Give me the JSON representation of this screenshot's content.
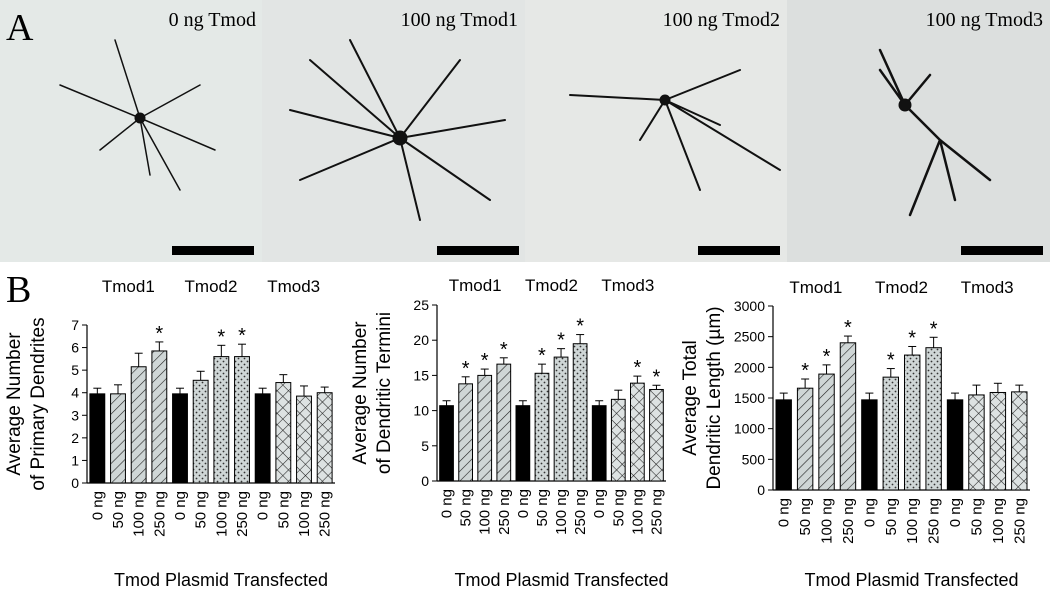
{
  "figure": {
    "label_a": "A",
    "label_b": "B",
    "images": [
      "0 ng Tmod",
      "100 ng Tmod1",
      "100 ng Tmod2",
      "100 ng Tmod3"
    ]
  },
  "chart_data": [
    {
      "type": "bar",
      "y_label": [
        "Average Number",
        "of Primary Dendrites"
      ],
      "x_label": "Tmod Plasmid Transfected",
      "groups": [
        "Tmod1",
        "Tmod2",
        "Tmod3"
      ],
      "categories": [
        "0 ng",
        "50 ng",
        "100 ng",
        "250 ng",
        "0 ng",
        "50 ng",
        "100 ng",
        "250 ng",
        "0 ng",
        "50 ng",
        "100 ng",
        "250 ng"
      ],
      "values": [
        3.95,
        3.95,
        5.15,
        5.85,
        3.95,
        4.55,
        5.6,
        5.6,
        3.95,
        4.45,
        3.85,
        4.0
      ],
      "errors": [
        0.25,
        0.4,
        0.6,
        0.4,
        0.25,
        0.4,
        0.5,
        0.55,
        0.25,
        0.35,
        0.45,
        0.25
      ],
      "markers": [
        null,
        null,
        null,
        "*",
        null,
        null,
        "*",
        "*",
        null,
        null,
        null,
        null
      ],
      "ylim": [
        0,
        7
      ],
      "yticks": [
        0,
        1,
        2,
        3,
        4,
        5,
        6,
        7
      ]
    },
    {
      "type": "bar",
      "y_label": [
        "Average Number",
        "of Dendritic Termini"
      ],
      "x_label": "Tmod Plasmid Transfected",
      "groups": [
        "Tmod1",
        "Tmod2",
        "Tmod3"
      ],
      "categories": [
        "0 ng",
        "50 ng",
        "100 ng",
        "250 ng",
        "0 ng",
        "50 ng",
        "100 ng",
        "250 ng",
        "0 ng",
        "50 ng",
        "100 ng",
        "250 ng"
      ],
      "values": [
        10.7,
        13.8,
        15.0,
        16.6,
        10.7,
        15.3,
        17.6,
        19.5,
        10.7,
        11.6,
        13.9,
        13.0
      ],
      "errors": [
        0.7,
        1.0,
        0.9,
        0.9,
        0.7,
        1.3,
        1.2,
        1.3,
        0.7,
        1.3,
        1.0,
        0.6
      ],
      "markers": [
        null,
        "*",
        "*",
        "*",
        null,
        "*",
        "*",
        "*",
        null,
        null,
        "*",
        "*"
      ],
      "ylim": [
        0,
        25
      ],
      "yticks": [
        0,
        5,
        10,
        15,
        20,
        25
      ]
    },
    {
      "type": "bar",
      "y_label": [
        "Average Total",
        "Dendritic Length (µm)"
      ],
      "x_label": "Tmod Plasmid Transfected",
      "groups": [
        "Tmod1",
        "Tmod2",
        "Tmod3"
      ],
      "categories": [
        "0 ng",
        "50 ng",
        "100 ng",
        "250 ng",
        "0 ng",
        "50 ng",
        "100 ng",
        "250 ng",
        "0 ng",
        "50 ng",
        "100 ng",
        "250 ng"
      ],
      "values": [
        1470,
        1660,
        1890,
        2400,
        1470,
        1840,
        2200,
        2320,
        1470,
        1550,
        1590,
        1600
      ],
      "errors": [
        110,
        150,
        150,
        110,
        110,
        140,
        140,
        170,
        110,
        160,
        150,
        110
      ],
      "markers": [
        null,
        "*",
        "*",
        "*",
        null,
        "*",
        "*",
        "*",
        null,
        null,
        null,
        null
      ],
      "ylim": [
        0,
        3000
      ],
      "yticks": [
        0,
        500,
        1000,
        1500,
        2000,
        2500,
        3000
      ]
    }
  ]
}
